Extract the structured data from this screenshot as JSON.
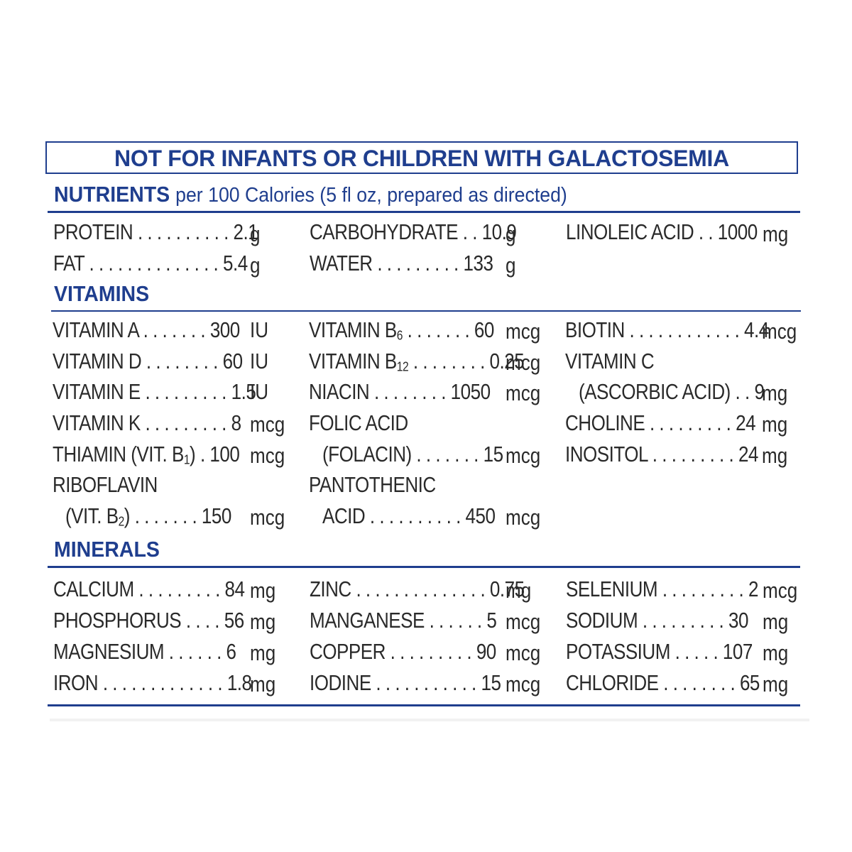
{
  "warning": "NOT FOR INFANTS OR CHILDREN WITH GALACTOSEMIA",
  "nutrients": {
    "title": "NUTRIENTS",
    "subtitle": "per 100 Calories (5 fl oz, prepared as directed)",
    "rows": [
      {
        "lbl": "PROTEIN . . . . . . . . . . 2.1",
        "unit": "g"
      },
      {
        "lbl": "FAT . . . . . . . . . . . . . . 5.4",
        "unit": "g"
      },
      {
        "lbl": "CARBOHYDRATE . . 10.9",
        "unit": "g"
      },
      {
        "lbl": "WATER . . . . . . . . . 133",
        "unit": "g"
      },
      {
        "lbl": "LINOLEIC ACID . . 1000",
        "unit": "mg"
      }
    ]
  },
  "vitamins": {
    "title": "VITAMINS",
    "rows": [
      {
        "lbl": "VITAMIN A . . . . . . . 300",
        "unit": "IU"
      },
      {
        "lbl": "VITAMIN D . . . . . . . . 60",
        "unit": "IU"
      },
      {
        "lbl": "VITAMIN E . . . . . . . . . 1.5",
        "unit": "IU"
      },
      {
        "lbl": "VITAMIN K . . . . . . . . . 8",
        "unit": "mcg"
      },
      {
        "lbl_pre": "THIAMIN (VIT. B",
        "lbl_sub": "1",
        "lbl_post": ") . 100",
        "unit": "mcg"
      },
      {
        "lbl": "RIBOFLAVIN",
        "unit": ""
      },
      {
        "lbl_pre": "(VIT. B",
        "lbl_sub": "2",
        "lbl_post": ") . . . . . . . 150",
        "unit": "mcg"
      },
      {
        "lbl_pre": "VITAMIN B",
        "lbl_sub": "6",
        "lbl_post": " . . . . . . . 60",
        "unit": "mcg"
      },
      {
        "lbl_pre": "VITAMIN B",
        "lbl_sub": "12",
        "lbl_post": " . . . . . . . . 0.25",
        "unit": "mcg"
      },
      {
        "lbl": "NIACIN . . . . . . . . 1050",
        "unit": "mcg"
      },
      {
        "lbl": "FOLIC ACID",
        "unit": ""
      },
      {
        "lbl": "(FOLACIN) . . . . . . . 15",
        "unit": "mcg"
      },
      {
        "lbl": "PANTOTHENIC",
        "unit": ""
      },
      {
        "lbl": "ACID . . . . . . . . . . 450",
        "unit": "mcg"
      },
      {
        "lbl": "BIOTIN . . . . . . . . . . . . 4.4",
        "unit": "mcg"
      },
      {
        "lbl": "VITAMIN C",
        "unit": ""
      },
      {
        "lbl": "(ASCORBIC ACID) . . 9",
        "unit": "mg"
      },
      {
        "lbl": "CHOLINE . . . . . . . . . 24",
        "unit": "mg"
      },
      {
        "lbl": "INOSITOL . . . . . . . . . 24",
        "unit": "mg"
      }
    ]
  },
  "minerals": {
    "title": "MINERALS",
    "rows": [
      {
        "lbl": "CALCIUM . . . . . . . . . 84",
        "unit": "mg"
      },
      {
        "lbl": "PHOSPHORUS . . . . 56",
        "unit": "mg"
      },
      {
        "lbl": "MAGNESIUM . . . . . . 6",
        "unit": "mg"
      },
      {
        "lbl": "IRON . . . . . . . . . . . . . 1.8",
        "unit": "mg"
      },
      {
        "lbl": "ZINC . . . . . . . . . . . . . . 0.75",
        "unit": "mg"
      },
      {
        "lbl": "MANGANESE . . . . . . 5",
        "unit": "mcg"
      },
      {
        "lbl": "COPPER . . . . . . . . . 90",
        "unit": "mcg"
      },
      {
        "lbl": "IODINE . . . . . . . . . . . 15",
        "unit": "mcg"
      },
      {
        "lbl": "SELENIUM . . . . . . . . . 2",
        "unit": "mcg"
      },
      {
        "lbl": "SODIUM . . . . . . . . . 30",
        "unit": "mg"
      },
      {
        "lbl": "POTASSIUM . . . . . 107",
        "unit": "mg"
      },
      {
        "lbl": "CHLORIDE . . . . . . . . 65",
        "unit": "mg"
      }
    ]
  },
  "colors": {
    "accent": "#1f3e8e",
    "text": "#2a2a2a"
  }
}
